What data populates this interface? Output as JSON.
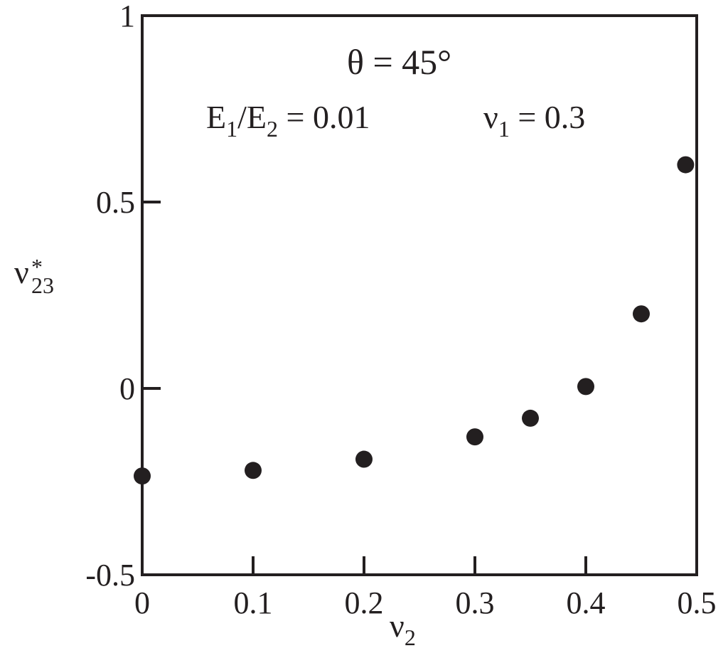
{
  "chart_data": {
    "type": "scatter",
    "x_ticks": [
      "0",
      "0.1",
      "0.2",
      "0.3",
      "0.4",
      "0.5"
    ],
    "y_ticks": [
      "-0.5",
      "0",
      "0.5",
      "1"
    ],
    "xlim": [
      0,
      0.5
    ],
    "ylim": [
      -0.5,
      1
    ],
    "grid": false,
    "xlabel": {
      "base": "ν",
      "sub": "2"
    },
    "ylabel": {
      "base": "ν",
      "sup": "*",
      "sub": "23"
    },
    "annotations": {
      "theta": "θ  = 45°",
      "ratio": {
        "e1": "E",
        "e1_sub": "1",
        "slash": "/E",
        "e2_sub": "2",
        "value": " = 0.01"
      },
      "nu1": {
        "base": "ν",
        "sub": "1",
        "value": " = 0.3"
      }
    },
    "series": [
      {
        "marker": "filled-circle",
        "color": "#231f20",
        "points": [
          {
            "x": 0.0,
            "y": -0.235
          },
          {
            "x": 0.1,
            "y": -0.22
          },
          {
            "x": 0.2,
            "y": -0.19
          },
          {
            "x": 0.3,
            "y": -0.13
          },
          {
            "x": 0.35,
            "y": -0.08
          },
          {
            "x": 0.4,
            "y": 0.005
          },
          {
            "x": 0.45,
            "y": 0.2
          },
          {
            "x": 0.49,
            "y": 0.6
          }
        ]
      }
    ]
  }
}
